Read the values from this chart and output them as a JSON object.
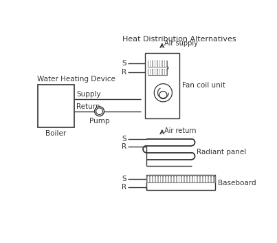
{
  "title": "Heat Distribution Alternatives",
  "bg_color": "#ffffff",
  "line_color": "#333333",
  "gray_color": "#777777",
  "light_gray": "#aaaaaa",
  "labels": {
    "water_heating": "Water Heating Device",
    "boiler": "Boiler",
    "supply": "Supply",
    "return": "Return",
    "pump": "Pump",
    "fan_coil": "Fan coil unit",
    "air_supply": "Air supply",
    "air_return": "Air return",
    "radiant": "Radiant panel",
    "baseboard": "Baseboard",
    "S": "S",
    "R": "R"
  }
}
